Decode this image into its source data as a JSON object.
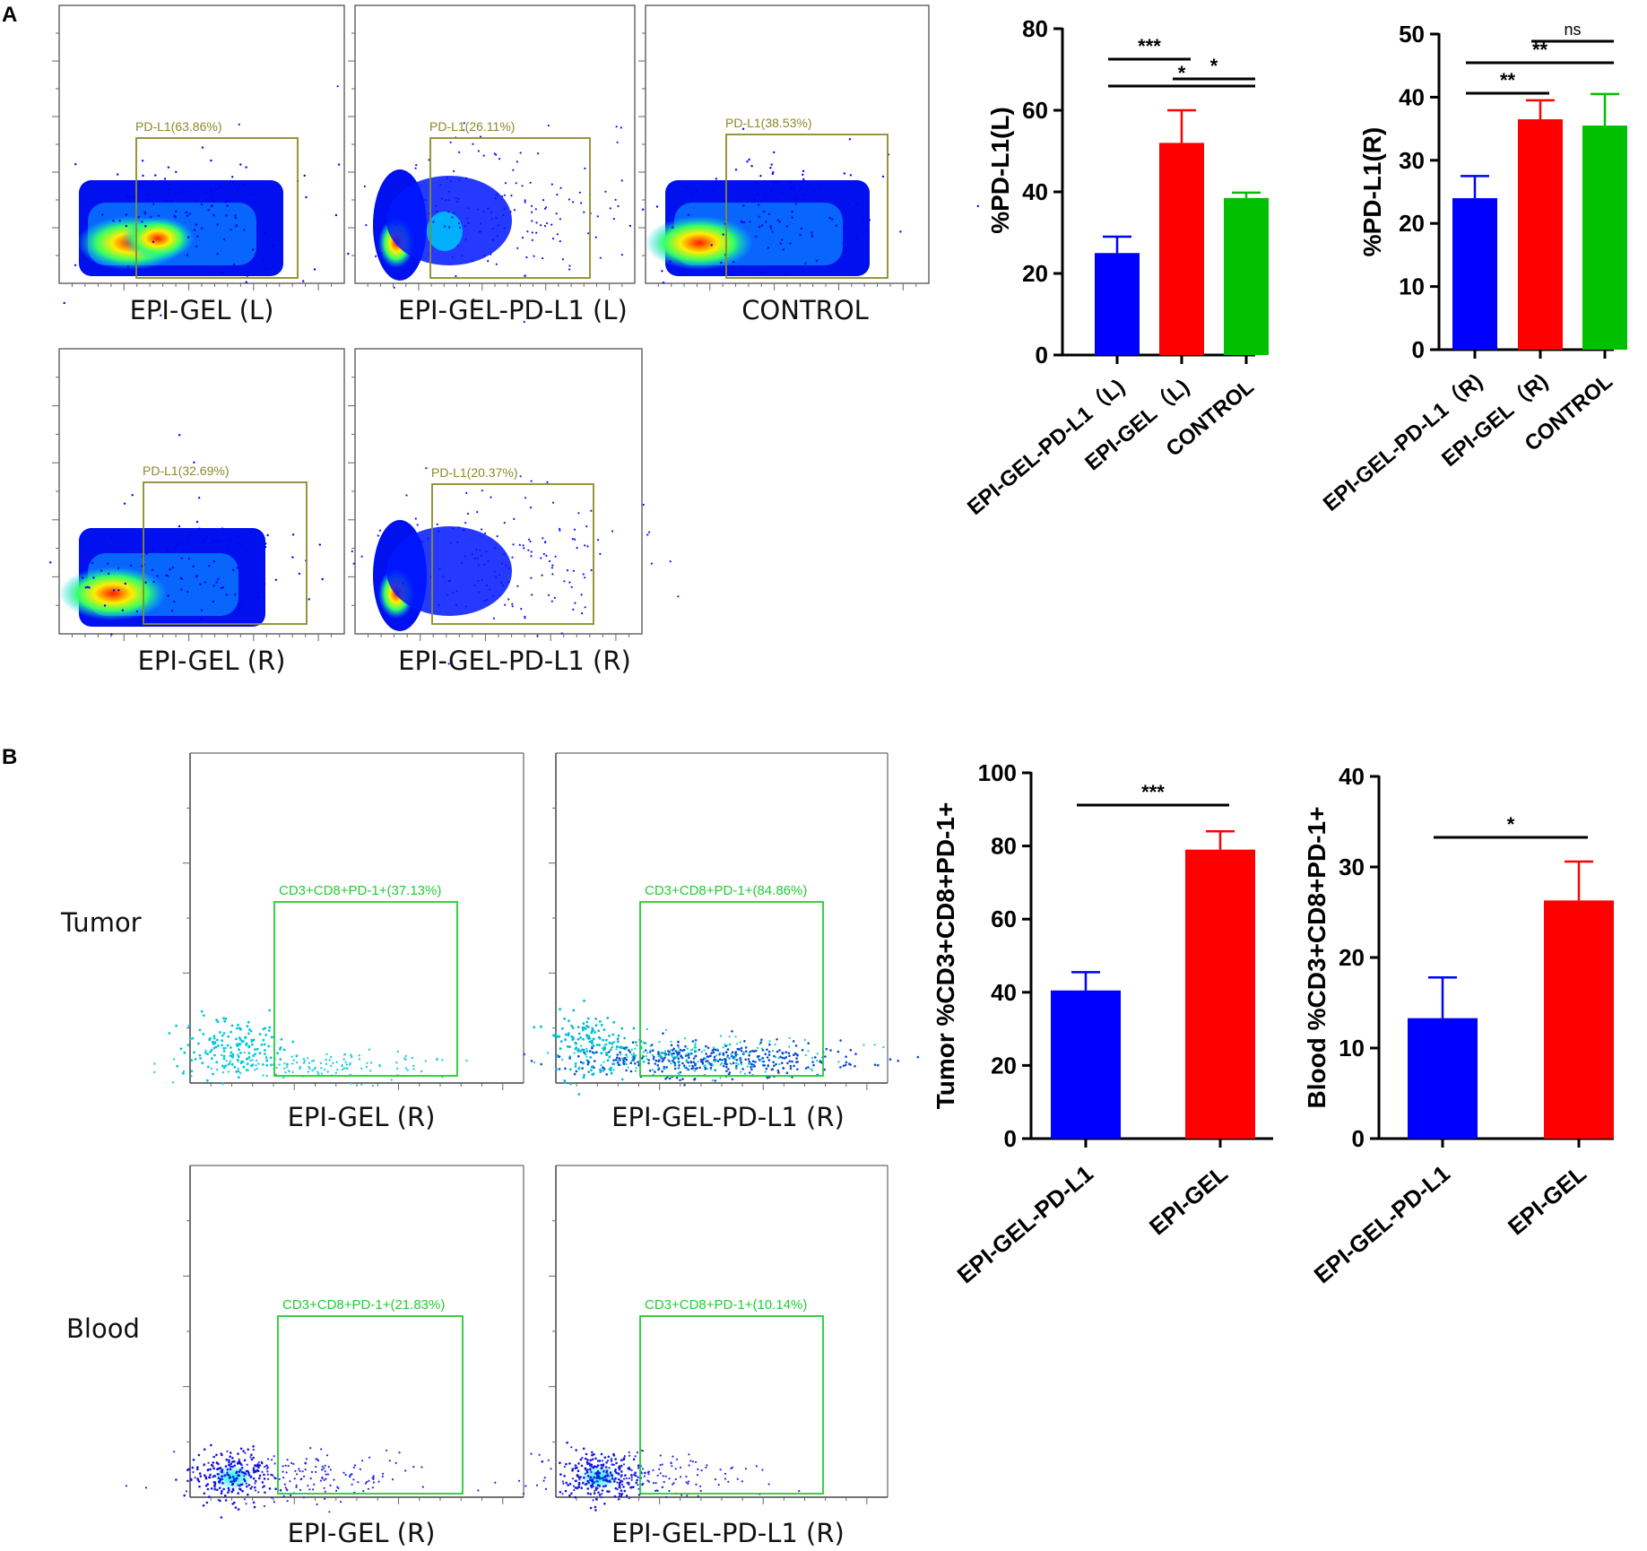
{
  "panels": {
    "a": "A",
    "b": "B"
  },
  "flow_plots": [
    {
      "caption": "EPI-GEL (L)",
      "gate": "PD-L1(63.86%)",
      "gate_color": "#8a8a2a"
    },
    {
      "caption": "EPI-GEL-PD-L1 (L)",
      "gate": "PD-L1(26.11%)",
      "gate_color": "#8a8a2a"
    },
    {
      "caption": "CONTROL",
      "gate": "PD-L1(38.53%)",
      "gate_color": "#8a8a2a"
    },
    {
      "caption": "EPI-GEL (R)",
      "gate": "PD-L1(32.69%)",
      "gate_color": "#8a8a2a"
    },
    {
      "caption": "EPI-GEL-PD-L1 (R)",
      "gate": "PD-L1(20.37%)",
      "gate_color": "#8a8a2a"
    },
    {
      "caption": "EPI-GEL (R)",
      "gate": "CD3+CD8+PD-1+(37.13%)",
      "gate_color": "#22cc33"
    },
    {
      "caption": "EPI-GEL-PD-L1 (R)",
      "gate": "CD3+CD8+PD-1+(84.86%)",
      "gate_color": "#22cc33"
    },
    {
      "caption": "EPI-GEL (R)",
      "gate": "CD3+CD8+PD-1+(21.83%)",
      "gate_color": "#22cc33"
    },
    {
      "caption": "EPI-GEL-PD-L1 (R)",
      "gate": "CD3+CD8+PD-1+(10.14%)",
      "gate_color": "#22cc33"
    }
  ],
  "row_labels": {
    "tumor": "Tumor",
    "blood": "Blood"
  },
  "colors": {
    "blue": "#0000ff",
    "red": "#ff0000",
    "green": "#00c000"
  },
  "chart_data": [
    {
      "type": "bar",
      "ylabel": "%PD-L1(L)",
      "categories": [
        "EPI-GEL-PD-L1（L)",
        "EPI-GEL（L)",
        "CONTROL"
      ],
      "values": [
        25,
        52,
        38.5
      ],
      "errors": [
        4,
        8,
        1.3
      ],
      "ylim": [
        0,
        80
      ],
      "yticks": [
        0,
        20,
        40,
        60,
        80
      ],
      "ytick_labels": [
        "0",
        "20",
        "40",
        "60",
        "80"
      ],
      "significance": [
        {
          "from": 0,
          "to": 1,
          "label": "***"
        },
        {
          "from": 1,
          "to": 2,
          "label": "*"
        },
        {
          "from": 0,
          "to": 2,
          "label": "*"
        }
      ]
    },
    {
      "type": "bar",
      "ylabel": "%PD-L1(R)",
      "categories": [
        "EPI-GEL-PD-L1（R)",
        "EPI-GEL（R)",
        "CONTROL"
      ],
      "values": [
        24,
        36.5,
        35.5
      ],
      "errors": [
        3.5,
        3,
        5
      ],
      "ylim": [
        0,
        50
      ],
      "yticks": [
        0,
        10,
        20,
        30,
        40,
        50
      ],
      "ytick_labels": [
        "0",
        "10",
        "20",
        "30",
        "40",
        "50"
      ],
      "significance": [
        {
          "from": 1,
          "to": 2,
          "label": "ns"
        },
        {
          "from": 0,
          "to": 2,
          "label": "**"
        },
        {
          "from": 0,
          "to": 1,
          "label": "**"
        }
      ]
    },
    {
      "type": "bar",
      "ylabel": "Tumor %CD3+CD8+PD-1+",
      "categories": [
        "EPI-GEL-PD-L1",
        "EPI-GEL"
      ],
      "values": [
        40.5,
        79
      ],
      "errors": [
        5,
        5
      ],
      "ylim": [
        0,
        100
      ],
      "yticks": [
        0,
        20,
        40,
        60,
        80,
        100
      ],
      "ytick_labels": [
        "0",
        "20",
        "40",
        "60",
        "80",
        "100"
      ],
      "significance": [
        {
          "from": 0,
          "to": 1,
          "label": "***"
        }
      ]
    },
    {
      "type": "bar",
      "ylabel": "Blood %CD3+CD8+PD-1+",
      "categories": [
        "EPI-GEL-PD-L1",
        "EPI-GEL"
      ],
      "values": [
        13.3,
        26.3
      ],
      "errors": [
        4.5,
        4.3
      ],
      "ylim": [
        0,
        40
      ],
      "yticks": [
        0,
        10,
        20,
        30,
        40
      ],
      "ytick_labels": [
        "0",
        "10",
        "20",
        "30",
        "40"
      ],
      "significance": [
        {
          "from": 0,
          "to": 1,
          "label": "*"
        }
      ]
    }
  ]
}
